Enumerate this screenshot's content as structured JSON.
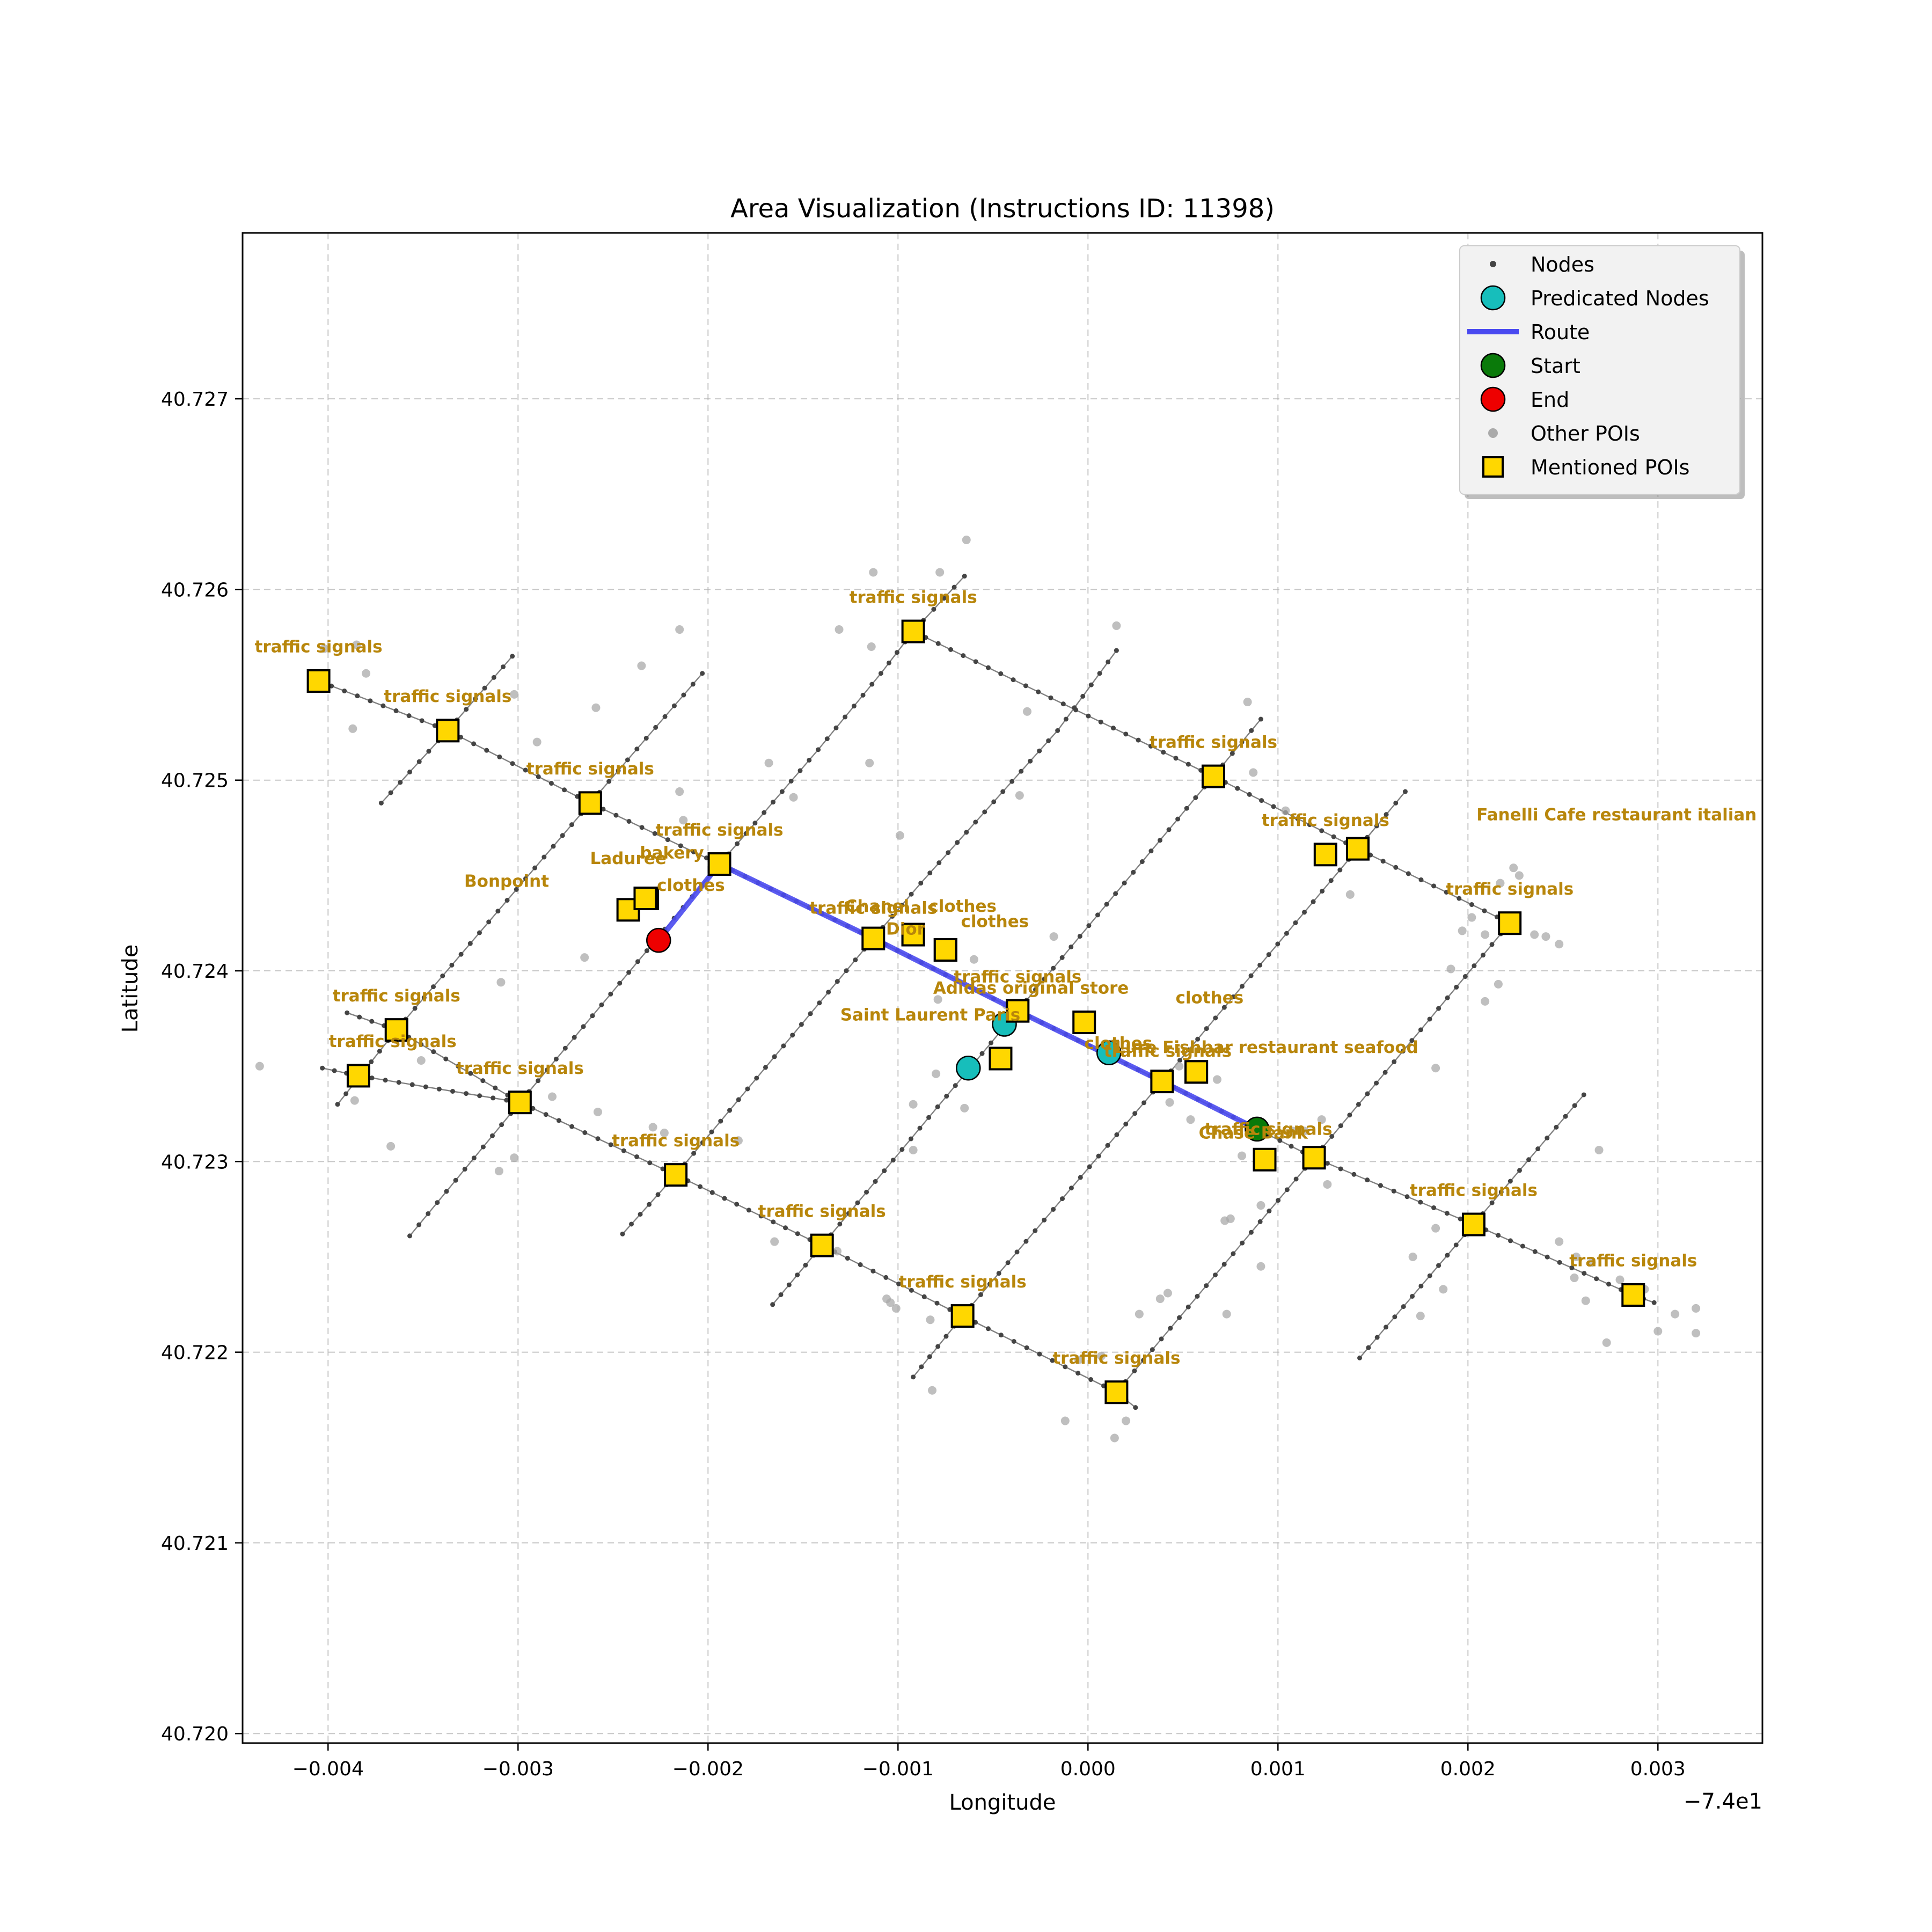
{
  "chart_data": {
    "type": "scatter",
    "title": "Area Visualization (Instructions ID: 11398)",
    "xlabel": "Longitude",
    "ylabel": "Latitude",
    "x_offset_label": "−7.4e1",
    "xlim": [
      -0.00445,
      0.00355
    ],
    "ylim": [
      40.71995,
      40.72787
    ],
    "xticks": [
      -0.004,
      -0.003,
      -0.002,
      -0.001,
      0.0,
      0.001,
      0.002,
      0.003
    ],
    "xtick_labels": [
      "−0.004",
      "−0.003",
      "−0.002",
      "−0.001",
      "0.000",
      "0.001",
      "0.002",
      "0.003"
    ],
    "yticks": [
      40.72,
      40.721,
      40.722,
      40.723,
      40.724,
      40.725,
      40.726,
      40.727
    ],
    "ytick_labels": [
      "40.720",
      "40.721",
      "40.722",
      "40.723",
      "40.724",
      "40.725",
      "40.726",
      "40.727"
    ],
    "grid": true,
    "legend_position": "top-right",
    "legend": [
      {
        "label": "Nodes",
        "kind": "small-dot",
        "color": "#444444"
      },
      {
        "label": "Predicated Nodes",
        "kind": "circle",
        "color": "#17bebb"
      },
      {
        "label": "Route",
        "kind": "line",
        "color": "#4a4af0"
      },
      {
        "label": "Start",
        "kind": "circle",
        "color": "#0a7a0a"
      },
      {
        "label": "End",
        "kind": "circle",
        "color": "#ee0000"
      },
      {
        "label": "Other POIs",
        "kind": "gray-dot",
        "color": "#aaaaaa"
      },
      {
        "label": "Mentioned POIs",
        "kind": "square",
        "color": "#ffd700"
      }
    ],
    "colors": {
      "node": "#444444",
      "edge": "#555555",
      "route": "#4a4af0",
      "predicated": "#17bebb",
      "start": "#0a7a0a",
      "end": "#ee0000",
      "other_poi": "#aaaaaa",
      "mentioned_poi": "#ffd700",
      "label": "#b8860b"
    },
    "streets_nw_se": [
      [
        [
          -0.00405,
          40.72552
        ],
        [
          -0.00337,
          40.72526
        ],
        [
          -0.00262,
          40.72488
        ],
        [
          -0.00194,
          40.72456
        ],
        [
          -0.00113,
          40.72417
        ],
        [
          -0.00037,
          40.72379
        ],
        [
          0.00039,
          40.72342
        ],
        [
          0.00089,
          40.72317
        ],
        [
          0.00119,
          40.72302
        ],
        [
          0.00203,
          40.72267
        ],
        [
          0.00287,
          40.7223
        ],
        [
          0.00298,
          40.72226
        ]
      ],
      [
        [
          -0.00092,
          40.72578
        ],
        [
          0.00066,
          40.72502
        ],
        [
          0.00142,
          40.72464
        ],
        [
          0.00222,
          40.72425
        ]
      ],
      [
        [
          -0.00403,
          40.72349
        ],
        [
          -0.00384,
          40.72345
        ],
        [
          -0.00299,
          40.72331
        ],
        [
          -0.00217,
          40.72293
        ],
        [
          -0.0014,
          40.72256
        ],
        [
          -0.00066,
          40.72219
        ],
        [
          0.00015,
          40.72179
        ],
        [
          0.00025,
          40.72171
        ]
      ],
      [
        [
          -0.0039,
          40.72378
        ],
        [
          -0.00364,
          40.72369
        ],
        [
          -0.00299,
          40.72331
        ]
      ]
    ],
    "streets_sw_ne": [
      [
        [
          -0.00372,
          40.72488
        ],
        [
          -0.00337,
          40.72526
        ],
        [
          -0.00303,
          40.72565
        ]
      ],
      [
        [
          -0.00395,
          40.7233
        ],
        [
          -0.00364,
          40.72369
        ],
        [
          -0.00262,
          40.72488
        ],
        [
          -0.00203,
          40.72556
        ]
      ],
      [
        [
          -0.00357,
          40.72261
        ],
        [
          -0.00299,
          40.72331
        ],
        [
          -0.00194,
          40.72456
        ],
        [
          -0.0018,
          40.72472
        ],
        [
          -0.00142,
          40.72516
        ],
        [
          -0.00109,
          40.72556
        ],
        [
          -0.00092,
          40.72578
        ],
        [
          -0.00065,
          40.72607
        ]
      ],
      [
        [
          -0.00245,
          40.72262
        ],
        [
          -0.00217,
          40.72293
        ],
        [
          -0.00113,
          40.72417
        ],
        [
          -0.00088,
          40.72446
        ],
        [
          -0.00016,
          40.72526
        ],
        [
          0.00015,
          40.72568
        ]
      ],
      [
        [
          -0.00166,
          40.72225
        ],
        [
          -0.0014,
          40.72256
        ],
        [
          -0.00037,
          40.72379
        ],
        [
          0.00066,
          40.72502
        ],
        [
          0.00091,
          40.72532
        ]
      ],
      [
        [
          -0.00092,
          40.72187
        ],
        [
          -0.00066,
          40.72219
        ],
        [
          0.00039,
          40.72342
        ],
        [
          0.00142,
          40.72464
        ],
        [
          0.00167,
          40.72494
        ]
      ],
      [
        [
          0.00015,
          40.72179
        ],
        [
          0.00119,
          40.72302
        ],
        [
          0.00222,
          40.72425
        ]
      ],
      [
        [
          0.00143,
          40.72197
        ],
        [
          0.00203,
          40.72267
        ],
        [
          0.00261,
          40.72335
        ]
      ]
    ],
    "route": [
      [
        -0.00226,
        40.72416
      ],
      [
        -0.00194,
        40.72456
      ],
      [
        -0.00113,
        40.72417
      ],
      [
        -0.00037,
        40.72379
      ],
      [
        0.00039,
        40.72342
      ],
      [
        0.00089,
        40.72317
      ]
    ],
    "predicated_nodes": [
      [
        -0.00044,
        40.72372
      ],
      [
        0.00011,
        40.72357
      ],
      [
        -0.00063,
        40.72349
      ]
    ],
    "start": [
      0.00089,
      40.72317
    ],
    "end": [
      -0.00226,
      40.72416
    ],
    "other_pois": [
      [
        -0.00402,
        40.72569
      ],
      [
        -0.00385,
        40.72571
      ],
      [
        -0.0038,
        40.72556
      ],
      [
        -0.00387,
        40.72527
      ],
      [
        -0.0029,
        40.7252
      ],
      [
        -0.00302,
        40.72545
      ],
      [
        -0.00259,
        40.72538
      ],
      [
        -0.00235,
        40.7256
      ],
      [
        -0.00215,
        40.72579
      ],
      [
        -0.00215,
        40.72494
      ],
      [
        -0.00213,
        40.72479
      ],
      [
        -0.00168,
        40.72509
      ],
      [
        -0.00155,
        40.72491
      ],
      [
        -0.00131,
        40.72579
      ],
      [
        -0.00114,
        40.7257
      ],
      [
        -0.00113,
        40.72609
      ],
      [
        -0.00078,
        40.72609
      ],
      [
        -0.00064,
        40.72626
      ],
      [
        -0.00115,
        40.72509
      ],
      [
        -0.0006,
        40.72406
      ],
      [
        -0.00099,
        40.72471
      ],
      [
        -0.00032,
        40.72536
      ],
      [
        -0.00036,
        40.72492
      ],
      [
        0.00015,
        40.72581
      ],
      [
        0.00084,
        40.72541
      ],
      [
        0.00087,
        40.72504
      ],
      [
        0.00138,
        40.7244
      ],
      [
        0.00104,
        40.72484
      ],
      [
        -0.00018,
        40.72418
      ],
      [
        -0.00043,
        40.72382
      ],
      [
        -0.00079,
        40.72385
      ],
      [
        -0.0008,
        40.72346
      ],
      [
        -0.00065,
        40.72328
      ],
      [
        -0.00092,
        40.7233
      ],
      [
        -0.00092,
        40.72306
      ],
      [
        -0.00184,
        40.72311
      ],
      [
        -0.00229,
        40.72318
      ],
      [
        -0.00258,
        40.72326
      ],
      [
        -0.00282,
        40.72334
      ],
      [
        -0.00302,
        40.72302
      ],
      [
        -0.0031,
        40.72295
      ],
      [
        -0.00367,
        40.72308
      ],
      [
        -0.00386,
        40.72332
      ],
      [
        -0.00436,
        40.7235
      ],
      [
        -0.00351,
        40.72353
      ],
      [
        -0.00309,
        40.72394
      ],
      [
        -0.00265,
        40.72407
      ],
      [
        -0.00223,
        40.72315
      ],
      [
        -0.00165,
        40.72258
      ],
      [
        -0.00132,
        40.72253
      ],
      [
        -0.00106,
        40.72228
      ],
      [
        -0.00104,
        40.72226
      ],
      [
        -0.00101,
        40.72223
      ],
      [
        -0.00083,
        40.72217
      ],
      [
        -0.00082,
        40.7218
      ],
      [
        -0.00012,
        40.72164
      ],
      [
        -5e-05,
        40.72196
      ],
      [
        7e-05,
        40.72198
      ],
      [
        0.00014,
        40.72155
      ],
      [
        0.0002,
        40.72164
      ],
      [
        0.00027,
        40.7222
      ],
      [
        0.00042,
        40.72231
      ],
      [
        0.00038,
        40.72228
      ],
      [
        0.00073,
        40.7222
      ],
      [
        0.00072,
        40.72269
      ],
      [
        0.00075,
        40.7227
      ],
      [
        0.00091,
        40.72245
      ],
      [
        0.00091,
        40.72277
      ],
      [
        0.00108,
        40.72316
      ],
      [
        0.00123,
        40.72322
      ],
      [
        0.00126,
        40.72288
      ],
      [
        0.00114,
        40.72316
      ],
      [
        0.00054,
        40.72322
      ],
      [
        0.00043,
        40.72331
      ],
      [
        0.00048,
        40.7235
      ],
      [
        0.00068,
        40.72343
      ],
      [
        0.00081,
        40.72303
      ],
      [
        0.00171,
        40.7225
      ],
      [
        0.00183,
        40.72265
      ],
      [
        0.00187,
        40.72233
      ],
      [
        0.00175,
        40.72219
      ],
      [
        0.00183,
        40.72349
      ],
      [
        0.00191,
        40.72401
      ],
      [
        0.00202,
        40.72428
      ],
      [
        0.00197,
        40.72421
      ],
      [
        0.00209,
        40.72384
      ],
      [
        0.00216,
        40.72393
      ],
      [
        0.00217,
        40.72446
      ],
      [
        0.00209,
        40.72419
      ],
      [
        0.00224,
        40.72454
      ],
      [
        0.00227,
        40.7245
      ],
      [
        0.00235,
        40.72419
      ],
      [
        0.00241,
        40.72418
      ],
      [
        0.00248,
        40.72414
      ],
      [
        0.00248,
        40.72258
      ],
      [
        0.00256,
        40.72239
      ],
      [
        0.00257,
        40.7225
      ],
      [
        0.00265,
        40.72247
      ],
      [
        0.00262,
        40.72227
      ],
      [
        0.00273,
        40.72205
      ],
      [
        0.0028,
        40.72238
      ],
      [
        0.00293,
        40.72233
      ],
      [
        0.00309,
        40.7222
      ],
      [
        0.0032,
        40.72223
      ],
      [
        0.0032,
        40.7221
      ],
      [
        0.003,
        40.72211
      ],
      [
        0.00269,
        40.72306
      ]
    ],
    "mentioned_pois": [
      {
        "x": -0.00405,
        "y": 40.72552,
        "label": "traffic signals"
      },
      {
        "x": -0.00337,
        "y": 40.72526,
        "label": "traffic signals"
      },
      {
        "x": -0.00262,
        "y": 40.72488,
        "label": "traffic signals"
      },
      {
        "x": -0.00194,
        "y": 40.72456,
        "label": "traffic signals"
      },
      {
        "x": -0.00092,
        "y": 40.72578,
        "label": "traffic signals"
      },
      {
        "x": 0.00066,
        "y": 40.72502,
        "label": "traffic signals"
      },
      {
        "x": 0.00125,
        "y": 40.72461,
        "label": "traffic signals"
      },
      {
        "x": 0.00142,
        "y": 40.72464,
        "label": "Fanelli Cafe restaurant italian",
        "anchor": "end",
        "dx": 0.0021
      },
      {
        "x": 0.00222,
        "y": 40.72425,
        "label": "traffic signals"
      },
      {
        "x": -0.00242,
        "y": 40.72432,
        "label": "Laduree",
        "dy_up": 0.00024
      },
      {
        "x": -0.00232,
        "y": 40.72438,
        "label": "Bonpoint",
        "dx": -0.00074,
        "dy_up": 6e-05
      },
      {
        "x": -0.00233,
        "y": 40.72438,
        "label": "bakery",
        "dx": 0.00014,
        "dy_up": 0.00021
      },
      {
        "x": -0.00233,
        "y": 40.72438,
        "label": "clothes",
        "dx": 0.00024,
        "dy_up": 4e-05
      },
      {
        "x": -0.00113,
        "y": 40.72417,
        "label": "traffic signals",
        "dy_up": 0.00013
      },
      {
        "x": -0.00092,
        "y": 40.72419,
        "label": "Chanel",
        "dx": -0.00019,
        "dy_up": 0.00012
      },
      {
        "x": -0.00075,
        "y": 40.72411,
        "label": "Dior",
        "dx": -0.00021,
        "dy_up": 8e-05
      },
      {
        "x": -0.00092,
        "y": 40.72419,
        "label": "clothes",
        "dx": 0.00026,
        "dy_up": 0.00012
      },
      {
        "x": -0.00075,
        "y": 40.72411,
        "label": "clothes",
        "dx": 0.00026,
        "dy_up": 0.00012
      },
      {
        "x": -0.00037,
        "y": 40.72379,
        "label": "traffic signals"
      },
      {
        "x": -2e-05,
        "y": 40.72373,
        "label": "Adidas original store",
        "dx": -0.00028
      },
      {
        "x": -0.00046,
        "y": 40.72354,
        "label": "Saint Laurent Paris",
        "dx": -0.00037,
        "dy_up": 0.0002
      },
      {
        "x": 0.00039,
        "y": 40.72342,
        "label": "traffic signals",
        "dx": 3e-05,
        "dy_up": 0.00013
      },
      {
        "x": 0.00057,
        "y": 40.72347,
        "label": "Lure Fishbar restaurant seafood",
        "dx": 0.00037,
        "dy_up": 0.0001
      },
      {
        "x": 0.00057,
        "y": 40.72347,
        "label": "clothes",
        "dx": -0.00041,
        "dy_up": 0.00012
      },
      {
        "x": 0.00057,
        "y": 40.72347,
        "label": "clothes",
        "dx": 7e-05,
        "dy_up": 0.00036
      },
      {
        "x": 0.00093,
        "y": 40.72301,
        "label": "Chase Bank",
        "dx": -6e-05,
        "dy_up": 0.00011
      },
      {
        "x": 0.00119,
        "y": 40.72302,
        "label": "traffic signals",
        "dx": -0.00024,
        "dy_up": 0.00012
      },
      {
        "x": -0.00364,
        "y": 40.72369,
        "label": "traffic signals"
      },
      {
        "x": -0.00384,
        "y": 40.72345,
        "label": "traffic signals",
        "dx": 0.00018
      },
      {
        "x": -0.00299,
        "y": 40.72331,
        "label": "traffic signals"
      },
      {
        "x": -0.00217,
        "y": 40.72293,
        "label": "traffic signals"
      },
      {
        "x": -0.0014,
        "y": 40.72256,
        "label": "traffic signals"
      },
      {
        "x": -0.00066,
        "y": 40.72219,
        "label": "traffic signals"
      },
      {
        "x": 0.00015,
        "y": 40.72179,
        "label": "traffic signals"
      },
      {
        "x": 0.00203,
        "y": 40.72267,
        "label": "traffic signals"
      },
      {
        "x": 0.00287,
        "y": 40.7223,
        "label": "traffic signals"
      }
    ]
  }
}
